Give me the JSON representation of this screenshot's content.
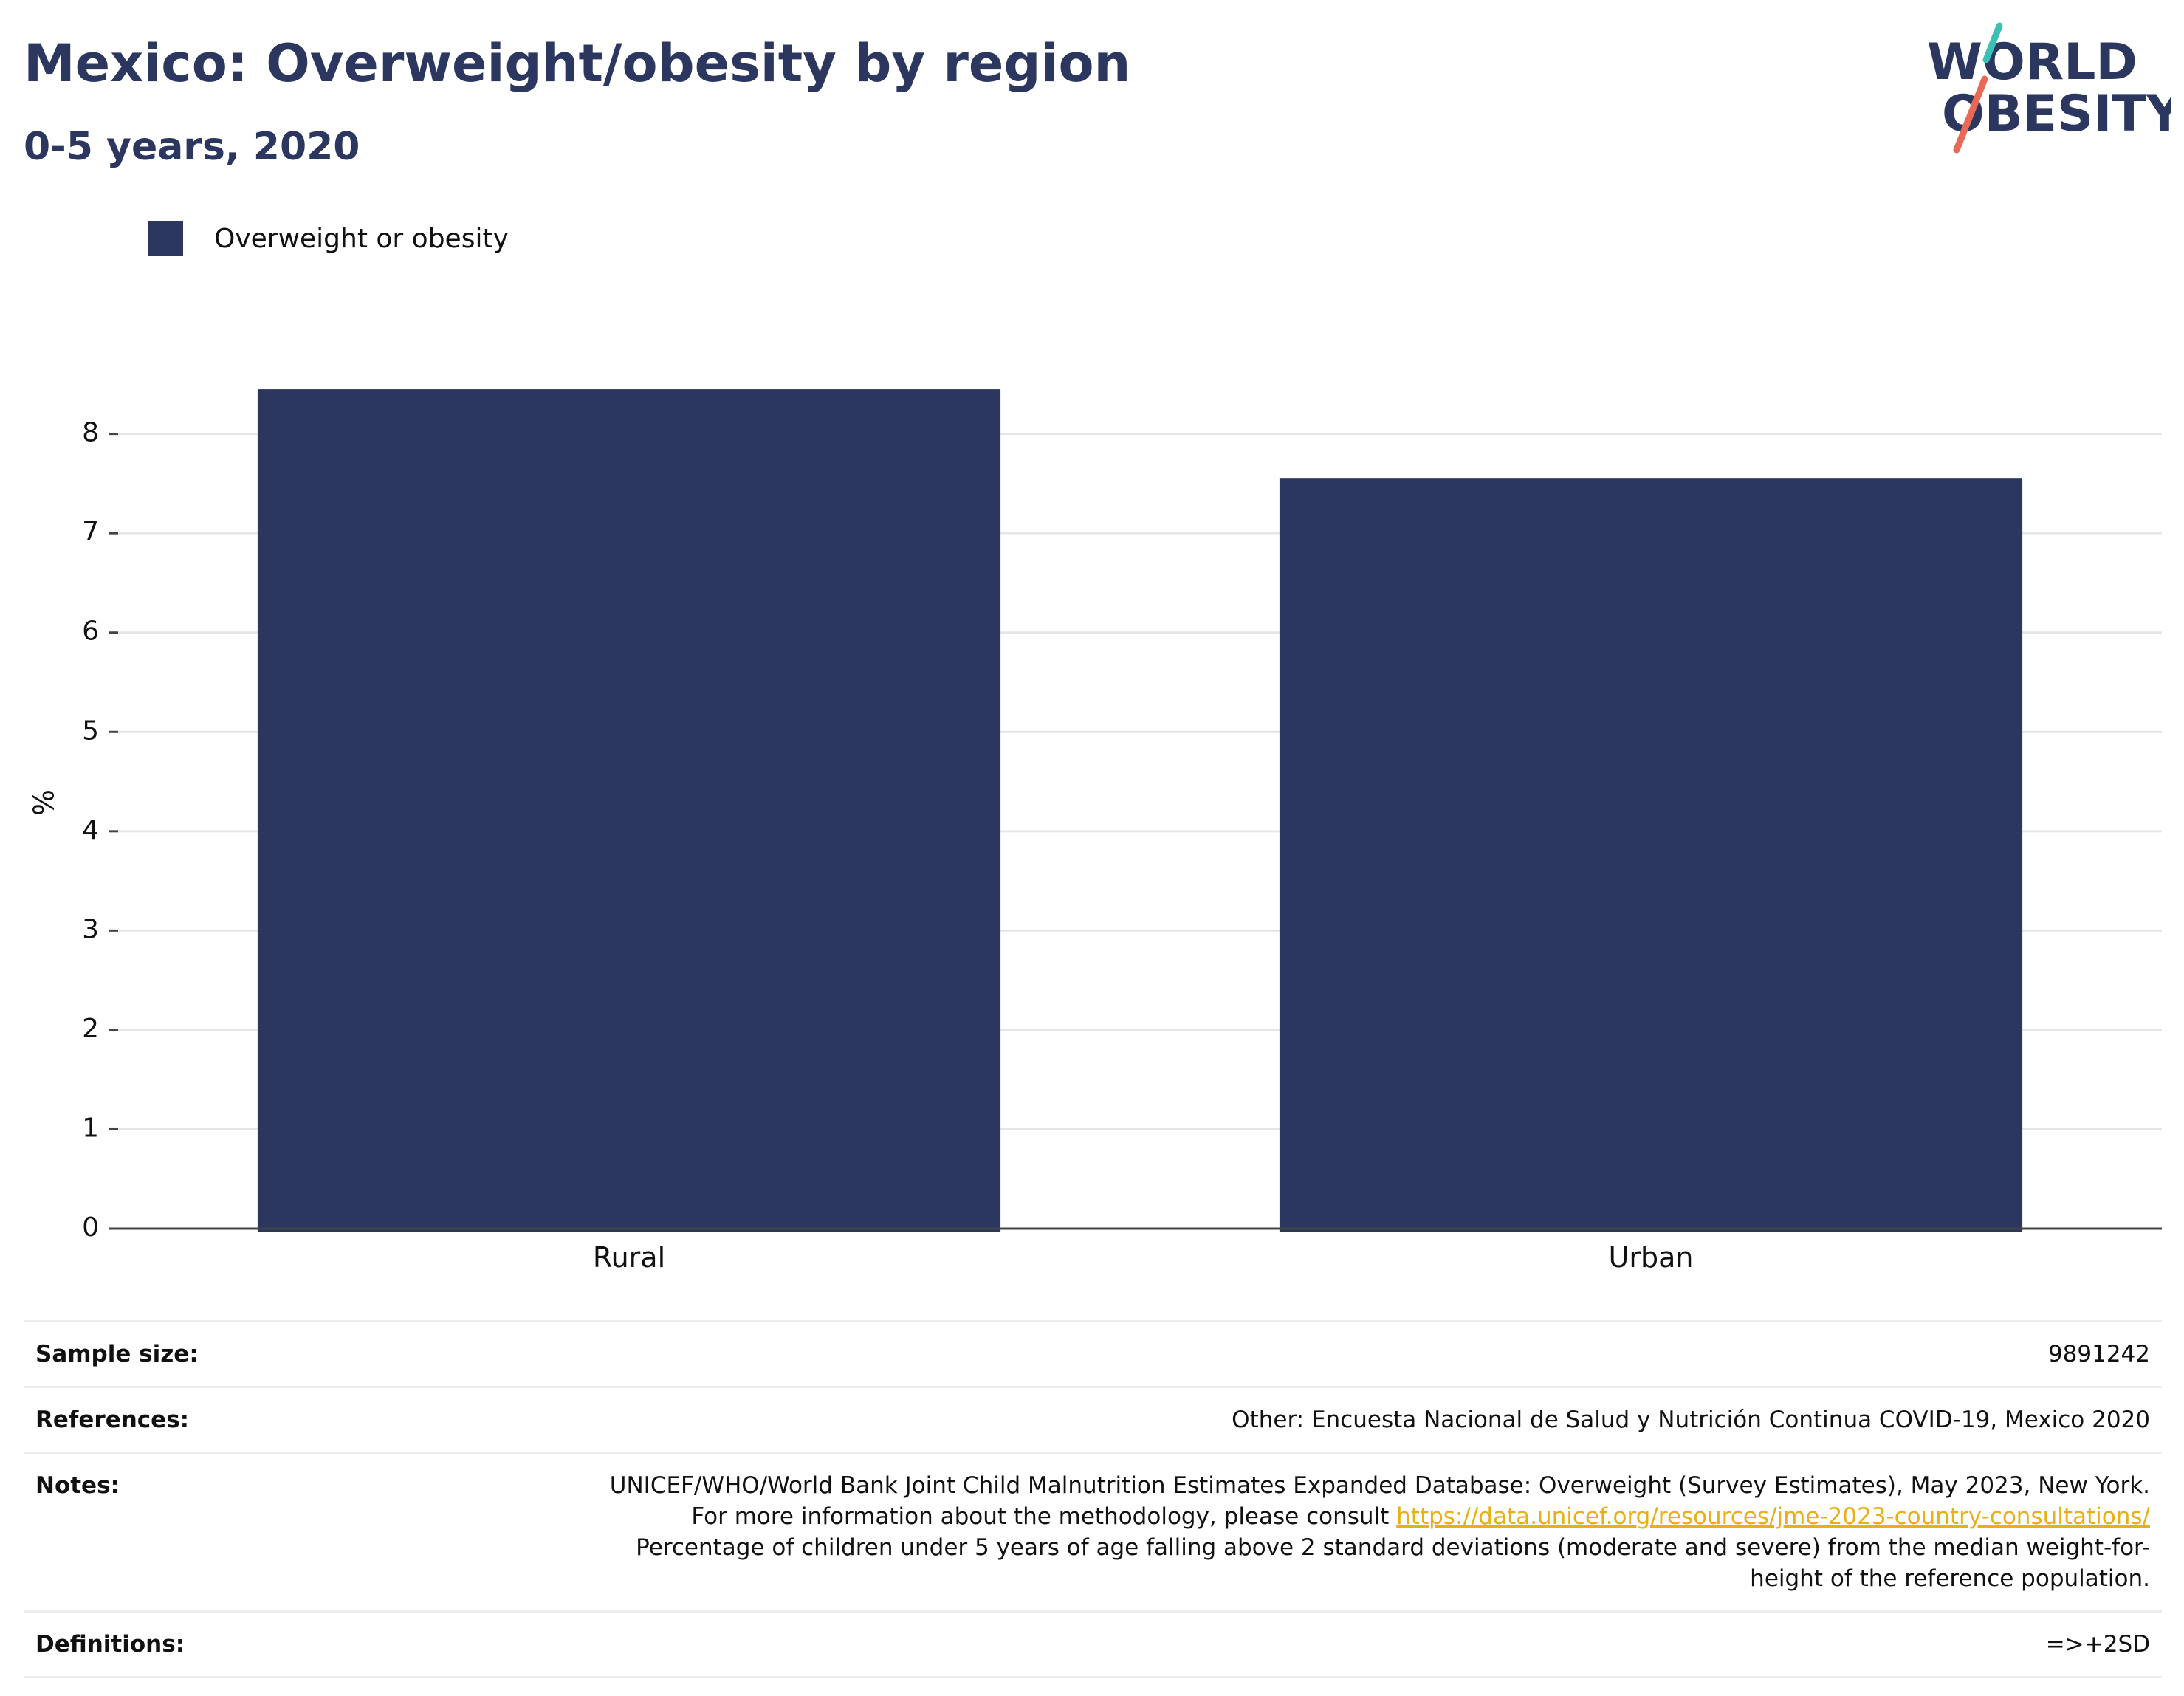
{
  "header": {
    "title": "Mexico: Overweight/obesity by region",
    "subtitle": "0-5 years, 2020"
  },
  "logo": {
    "line1": "WORLD",
    "line2": "OBESITY",
    "colors": {
      "text": "#2b375f",
      "slash_teal": "#3cbfb5",
      "slash_coral": "#e86a56"
    }
  },
  "chart_data": {
    "type": "bar",
    "categories": [
      "Rural",
      "Urban"
    ],
    "series": [
      {
        "name": "Overweight or obesity",
        "values": [
          8.45,
          7.55
        ],
        "color": "#2b375f"
      }
    ],
    "ylabel": "%",
    "xlabel": "",
    "ylim": [
      0,
      8.8
    ],
    "yticks": [
      0,
      1,
      2,
      3,
      4,
      5,
      6,
      7,
      8
    ],
    "grid": true,
    "legend": "top-left"
  },
  "footer": {
    "sample_size": {
      "label": "Sample size:",
      "value": "9891242"
    },
    "references": {
      "label": "References:",
      "value": "Other: Encuesta Nacional de Salud y Nutrición Continua COVID-19, Mexico 2020"
    },
    "notes": {
      "label": "Notes:",
      "text_before": "UNICEF/WHO/World Bank Joint Child Malnutrition Estimates Expanded Database: Overweight (Survey Estimates), May 2023, New York. For more information about the methodology, please consult ",
      "link": "https://data.unicef.org/resources/jme-2023-country-consultations/",
      "text_after": " Percentage of children under 5 years of age falling above 2 standard deviations (moderate and severe) from the median weight-for-height of the reference population."
    },
    "definitions": {
      "label": "Definitions:",
      "value": "=>+2SD"
    }
  }
}
